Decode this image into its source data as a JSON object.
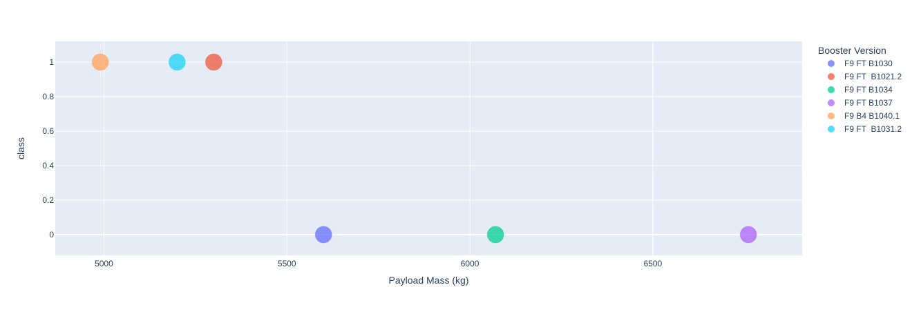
{
  "chart_data": {
    "type": "scatter",
    "title": "",
    "xlabel": "Payload Mass (kg)",
    "ylabel": "class",
    "xlim": [
      4867,
      6908
    ],
    "ylim": [
      -0.12,
      1.12
    ],
    "x_ticks": [
      5000,
      5500,
      6000,
      6500
    ],
    "y_ticks": [
      0,
      0.2,
      0.4,
      0.6,
      0.8,
      1
    ],
    "grid": true,
    "plot_background": "#e5ecf6",
    "legend": {
      "title": "Booster Version",
      "position": "right"
    },
    "series": [
      {
        "name": "F9 FT B1030",
        "color": "#636efa",
        "points": [
          {
            "x": 5600,
            "y": 0
          }
        ]
      },
      {
        "name": "F9 FT  B1021.2",
        "color": "#ef553b",
        "points": [
          {
            "x": 5300,
            "y": 1
          }
        ]
      },
      {
        "name": "F9 FT B1034",
        "color": "#00cc96",
        "points": [
          {
            "x": 6070,
            "y": 0
          }
        ]
      },
      {
        "name": "F9 FT B1037",
        "color": "#ab63fa",
        "points": [
          {
            "x": 6761,
            "y": 0
          }
        ]
      },
      {
        "name": "F9 B4 B1040.1",
        "color": "#ffa15a",
        "points": [
          {
            "x": 4990,
            "y": 1
          }
        ]
      },
      {
        "name": "F9 FT  B1031.2",
        "color": "#19d3f3",
        "points": [
          {
            "x": 5200,
            "y": 1
          }
        ]
      }
    ]
  }
}
